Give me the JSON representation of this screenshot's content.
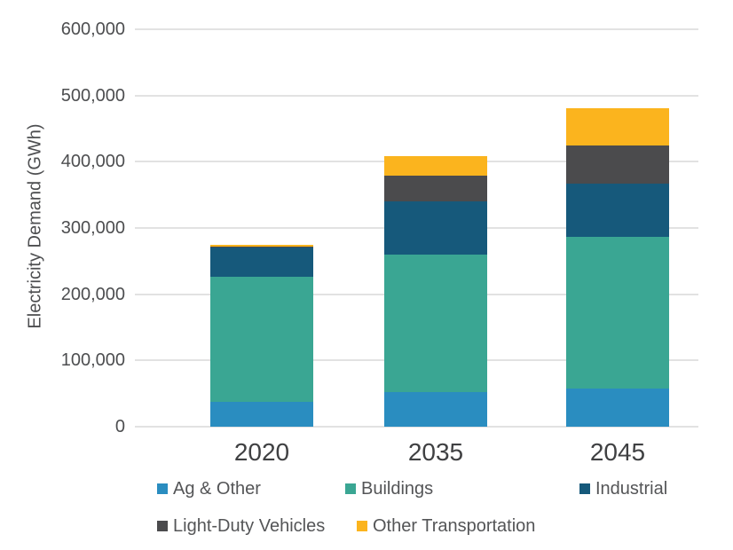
{
  "chart_data": {
    "type": "bar",
    "stacked": true,
    "title": "",
    "xlabel": "",
    "ylabel": "Electricity Demand (GWh)",
    "categories": [
      "2020",
      "2035",
      "2045"
    ],
    "series": [
      {
        "name": "Ag & Other",
        "color": "#2a8dc0",
        "values": [
          38000,
          52000,
          57000
        ]
      },
      {
        "name": "Buildings",
        "color": "#3aa693",
        "values": [
          188000,
          208000,
          230000
        ]
      },
      {
        "name": "Industrial",
        "color": "#16597b",
        "values": [
          45000,
          80000,
          80000
        ]
      },
      {
        "name": "Light-Duty Vehicles",
        "color": "#4b4b4d",
        "values": [
          1000,
          39000,
          58000
        ]
      },
      {
        "name": "Other Transportation",
        "color": "#fbb41e",
        "values": [
          3000,
          30000,
          56000
        ]
      }
    ],
    "totals": [
      275000,
      409000,
      481000
    ],
    "ylim": [
      0,
      600000
    ],
    "ytick_step": 100000,
    "ytick_labels": [
      "0",
      "100,000",
      "200,000",
      "300,000",
      "400,000",
      "500,000",
      "600,000"
    ],
    "grid": true,
    "gridline_color": "#e2e2e2",
    "legend_position": "bottom",
    "legend_rows": [
      [
        "Ag & Other",
        "Buildings",
        "Industrial"
      ],
      [
        "Light-Duty Vehicles",
        "Other Transportation"
      ]
    ]
  }
}
